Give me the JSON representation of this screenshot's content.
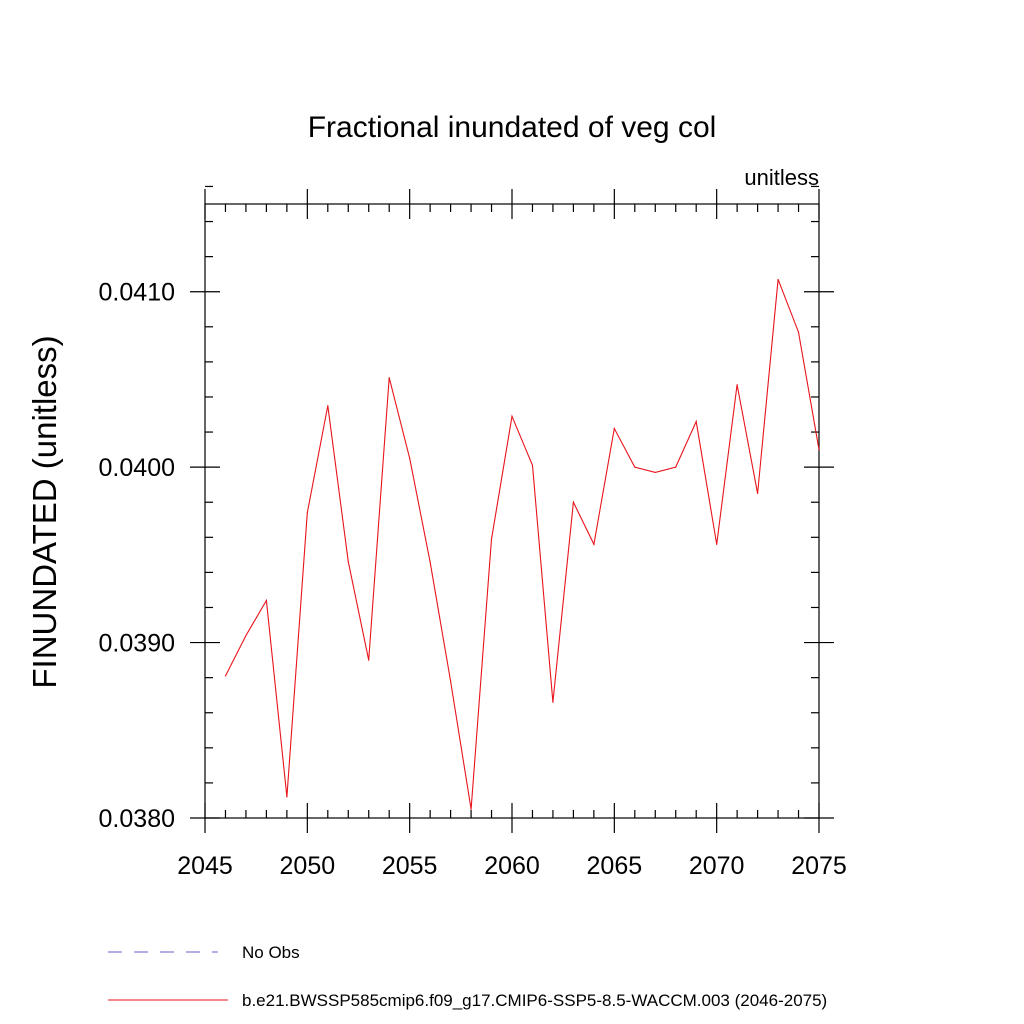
{
  "chart_data": {
    "type": "line",
    "title": "Fractional inundated of veg col",
    "units_label": "unitless",
    "ylabel": "FINUNDATED  (unitless)",
    "xlabel": "",
    "xlim": [
      2045,
      2075
    ],
    "ylim": [
      0.038,
      0.0415
    ],
    "x_ticks": [
      {
        "value": 2045,
        "label": "2045"
      },
      {
        "value": 2050,
        "label": "2050"
      },
      {
        "value": 2055,
        "label": "2055"
      },
      {
        "value": 2060,
        "label": "2060"
      },
      {
        "value": 2065,
        "label": "2065"
      },
      {
        "value": 2070,
        "label": "2070"
      },
      {
        "value": 2075,
        "label": "2075"
      }
    ],
    "y_ticks": [
      {
        "value": 0.038,
        "label": "0.0380"
      },
      {
        "value": 0.039,
        "label": "0.0390"
      },
      {
        "value": 0.04,
        "label": "0.0400"
      },
      {
        "value": 0.041,
        "label": "0.0410"
      }
    ],
    "x_minor_step": 1,
    "y_minor_step": 0.0002,
    "grid": false,
    "series": [
      {
        "name": "b.e21.BWSSP585cmip6.f09_g17.CMIP6-SSP5-8.5-WACCM.003 (2046-2075)",
        "color": "#e8141b",
        "style": "solid",
        "x": [
          2046,
          2047,
          2048,
          2049,
          2050,
          2051,
          2052,
          2053,
          2054,
          2055,
          2056,
          2057,
          2058,
          2059,
          2060,
          2061,
          2062,
          2063,
          2064,
          2065,
          2066,
          2067,
          2068,
          2069,
          2070,
          2071,
          2072,
          2073,
          2074,
          2075
        ],
        "values": [
          0.03881,
          0.03904,
          0.03924,
          0.03812,
          0.03974,
          0.04035,
          0.03946,
          0.0389,
          0.04051,
          0.04005,
          0.03946,
          0.03878,
          0.03805,
          0.03959,
          0.04029,
          0.04001,
          0.03866,
          0.0398,
          0.03956,
          0.04022,
          0.04,
          0.03997,
          0.04,
          0.04026,
          0.03956,
          0.04047,
          0.03985,
          0.04107,
          0.04077,
          0.0401
        ]
      }
    ],
    "legend": [
      {
        "label": "No Obs",
        "color": "#6a5acd",
        "style": "dashed"
      },
      {
        "label": "b.e21.BWSSP585cmip6.f09_g17.CMIP6-SSP5-8.5-WACCM.003 (2046-2075)",
        "color": "#e8141b",
        "style": "solid"
      }
    ],
    "legend_position": "bottom"
  }
}
